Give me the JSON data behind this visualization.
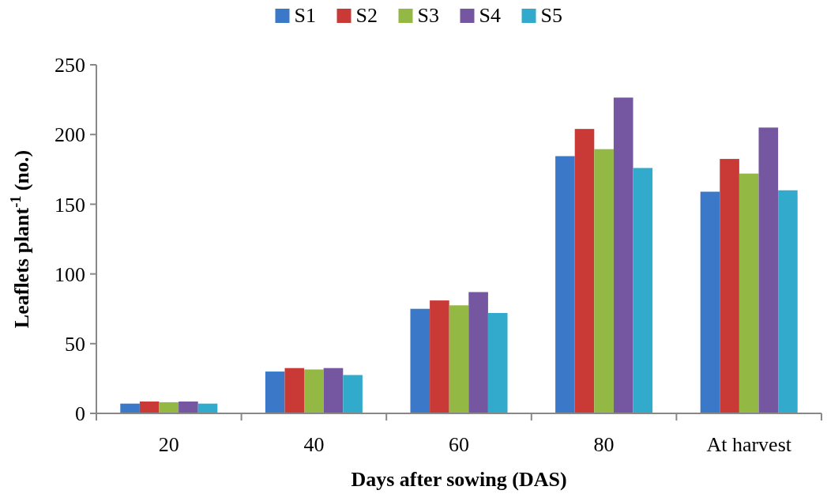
{
  "chart_data": {
    "type": "bar",
    "xlabel": "Days after sowing (DAS)",
    "ylabel": "Leaflets plant$^{-1}$ (no.)",
    "categories": [
      "20",
      "40",
      "60",
      "80",
      "At harvest"
    ],
    "series": [
      {
        "name": "S1",
        "color": "#3b78c8",
        "values": [
          7,
          30,
          75,
          184.5,
          159
        ]
      },
      {
        "name": "S2",
        "color": "#c93a37",
        "values": [
          8.5,
          32.5,
          81,
          204,
          182.5
        ]
      },
      {
        "name": "S3",
        "color": "#93b844",
        "values": [
          8,
          31.5,
          77.5,
          189.5,
          172
        ]
      },
      {
        "name": "S4",
        "color": "#7556a0",
        "values": [
          8.5,
          32.5,
          87,
          226.5,
          205
        ]
      },
      {
        "name": "S5",
        "color": "#31aacb",
        "values": [
          7,
          27.5,
          72,
          176,
          160
        ]
      }
    ],
    "ylim": [
      0,
      250
    ],
    "yticks": [
      0,
      50,
      100,
      150,
      200,
      250
    ],
    "grid": false,
    "legend": "top"
  }
}
